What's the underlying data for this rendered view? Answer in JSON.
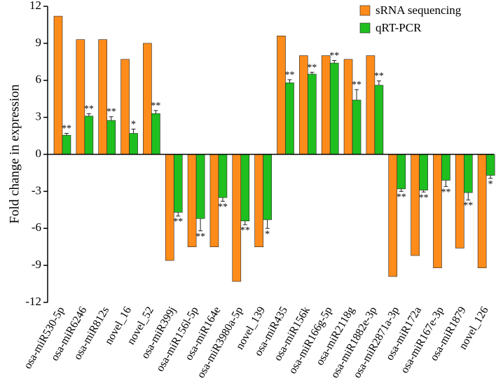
{
  "chart_data": {
    "type": "bar",
    "ylabel": "Fold change in expression",
    "categories": [
      "osa-miR530-5p",
      "osa-miR6246",
      "osa-miR812s",
      "novel_16",
      "novel_52",
      "osa-miR399j",
      "osa-miR156l-5p",
      "osa-miR164e",
      "osa-miR3980a-5p",
      "novel_139",
      "osa-miR435",
      "osa-miR156k",
      "osa-miR166g-5p",
      "osa-miR2118g",
      "osa-miR1882e-3p",
      "osa-miR2871a-3p",
      "osa-miR172a",
      "osa-miR167e-3p",
      "osa-miR1879",
      "novel_126"
    ],
    "series": [
      {
        "name": "sRNA sequencing",
        "color": "#ff8c1a",
        "values": [
          11.2,
          9.3,
          9.3,
          7.7,
          9.0,
          -8.6,
          -7.5,
          -7.5,
          -10.3,
          -7.5,
          9.6,
          8.0,
          8.0,
          7.7,
          8.0,
          -9.9,
          -8.2,
          -9.2,
          -7.6,
          -9.2
        ]
      },
      {
        "name": "qRT-PCR",
        "color": "#1fbf1f",
        "values": [
          1.55,
          3.1,
          2.75,
          1.7,
          3.3,
          -4.7,
          -5.2,
          -3.5,
          -5.4,
          -5.3,
          5.8,
          6.5,
          7.4,
          4.4,
          5.6,
          -2.8,
          -2.9,
          -2.1,
          -3.1,
          -1.7
        ],
        "errors": [
          0.15,
          0.2,
          0.3,
          0.35,
          0.25,
          0.3,
          1.0,
          0.3,
          0.3,
          0.7,
          0.25,
          0.15,
          0.2,
          0.85,
          0.35,
          0.2,
          0.15,
          0.5,
          0.6,
          0.25
        ],
        "significance": [
          "**",
          "**",
          "**",
          "*",
          "**",
          "**",
          "**",
          "**",
          "**",
          "*",
          "**",
          "**",
          "**",
          "**",
          "**",
          "**",
          "**",
          "**",
          "**",
          "*"
        ]
      }
    ],
    "ylim": [
      -12,
      12
    ],
    "yticks": [
      12,
      9,
      6,
      3,
      0,
      -3,
      -6,
      -9,
      -12
    ]
  }
}
